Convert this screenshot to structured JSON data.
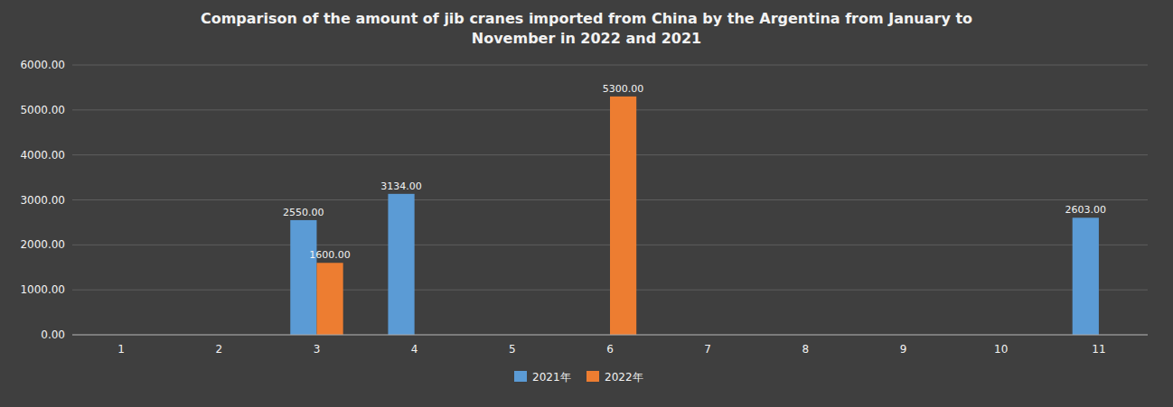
{
  "chart_data": {
    "type": "bar",
    "title": "Comparison of the amount of jib cranes imported from China by the Argentina from January to\nNovember in 2022 and 2021",
    "categories": [
      "1",
      "2",
      "3",
      "4",
      "5",
      "6",
      "7",
      "8",
      "9",
      "10",
      "11"
    ],
    "series": [
      {
        "name": "2021年",
        "color": "#5B9BD5",
        "values": [
          0,
          0,
          2550,
          3134,
          0,
          0,
          0,
          0,
          0,
          0,
          2603
        ],
        "value_labels": [
          null,
          null,
          "2550.00",
          "3134.00",
          null,
          null,
          null,
          null,
          null,
          null,
          "2603.00"
        ]
      },
      {
        "name": "2022年",
        "color": "#ED7D31",
        "values": [
          0,
          0,
          1600,
          0,
          0,
          5300,
          0,
          0,
          0,
          0,
          0
        ],
        "value_labels": [
          null,
          null,
          "1600.00",
          null,
          null,
          "5300.00",
          null,
          null,
          null,
          null,
          null
        ]
      }
    ],
    "ylim": [
      0,
      6000
    ],
    "yticks": [
      {
        "value": 0,
        "label": "0.00"
      },
      {
        "value": 1000,
        "label": "1000.00"
      },
      {
        "value": 2000,
        "label": "2000.00"
      },
      {
        "value": 3000,
        "label": "3000.00"
      },
      {
        "value": 4000,
        "label": "4000.00"
      },
      {
        "value": 5000,
        "label": "5000.00"
      },
      {
        "value": 6000,
        "label": "6000.00"
      }
    ],
    "grid": true,
    "data_labels": true,
    "legend": "bottom"
  }
}
